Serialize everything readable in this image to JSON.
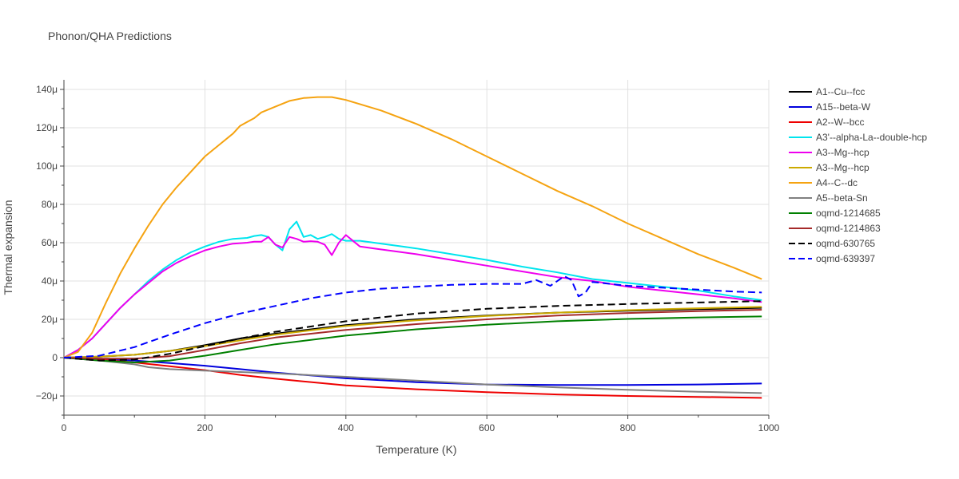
{
  "chart_data": {
    "type": "line",
    "title": "Phonon/QHA Predictions",
    "xlabel": "Temperature (K)",
    "ylabel": "Thermal expansion",
    "xlim": [
      0,
      1000
    ],
    "ylim": [
      -30,
      145
    ],
    "x_ticks": [
      0,
      200,
      400,
      600,
      800,
      1000
    ],
    "x_tick_labels": [
      "0",
      "200",
      "400",
      "600",
      "800",
      "1000"
    ],
    "y_ticks": [
      -20,
      0,
      20,
      40,
      60,
      80,
      100,
      120,
      140
    ],
    "y_tick_labels": [
      "−20μ",
      "0",
      "20μ",
      "40μ",
      "60μ",
      "80μ",
      "100μ",
      "120μ",
      "140μ"
    ],
    "y_unit": "μ",
    "grid": true,
    "legend_position": "right",
    "series": [
      {
        "name": "A1--Cu--fcc",
        "color": "#000000",
        "dash": "solid",
        "x": [
          0,
          50,
          100,
          150,
          200,
          250,
          300,
          400,
          500,
          600,
          700,
          800,
          900,
          990
        ],
        "y": [
          0,
          0.5,
          1.5,
          3.5,
          6.5,
          10,
          12.5,
          17,
          20,
          22,
          23.5,
          24.5,
          25.3,
          26
        ]
      },
      {
        "name": "A15--beta-W",
        "color": "#0000dd",
        "dash": "solid",
        "x": [
          0,
          50,
          100,
          150,
          200,
          250,
          300,
          400,
          500,
          600,
          700,
          800,
          900,
          990
        ],
        "y": [
          0,
          -0.5,
          -1.5,
          -2.8,
          -4.2,
          -6,
          -7.8,
          -10.8,
          -12.8,
          -14,
          -14.3,
          -14.3,
          -14,
          -13.5
        ]
      },
      {
        "name": "A2--W--bcc",
        "color": "#ee0000",
        "dash": "solid",
        "x": [
          0,
          50,
          100,
          150,
          200,
          250,
          300,
          400,
          500,
          600,
          700,
          800,
          900,
          990
        ],
        "y": [
          0,
          -1,
          -2.5,
          -4.5,
          -6.5,
          -9,
          -11,
          -14.5,
          -16.5,
          -18,
          -19.2,
          -20,
          -20.5,
          -21
        ]
      },
      {
        "name": "A3'--alpha-La--double-hcp",
        "color": "#00e5ee",
        "dash": "solid",
        "x": [
          0,
          20,
          40,
          60,
          80,
          100,
          120,
          140,
          160,
          180,
          200,
          220,
          240,
          260,
          270,
          280,
          290,
          300,
          310,
          320,
          330,
          340,
          350,
          360,
          370,
          380,
          390,
          400,
          420,
          440,
          460,
          480,
          500,
          550,
          600,
          650,
          700,
          750,
          800,
          850,
          900,
          950,
          990
        ],
        "y": [
          0,
          4,
          10,
          18,
          26,
          33,
          40,
          46,
          51,
          55,
          58,
          60.5,
          62,
          62.5,
          63.5,
          64,
          63,
          59,
          56,
          67,
          71,
          63,
          64,
          62,
          63,
          64.5,
          62,
          61,
          61,
          60,
          59,
          58,
          57,
          54,
          51,
          47.5,
          44.5,
          41,
          39,
          37,
          35,
          32,
          30
        ]
      },
      {
        "name": "A3--Mg--hcp",
        "color": "#ee00ee",
        "dash": "solid",
        "x": [
          0,
          20,
          40,
          60,
          80,
          100,
          120,
          140,
          160,
          180,
          200,
          220,
          240,
          260,
          270,
          280,
          290,
          300,
          310,
          320,
          330,
          340,
          350,
          360,
          370,
          380,
          390,
          400,
          420,
          440,
          460,
          480,
          500,
          550,
          600,
          650,
          700,
          750,
          800,
          850,
          900,
          950,
          990
        ],
        "y": [
          0,
          4,
          10,
          18,
          26,
          33,
          39,
          45,
          49.5,
          53,
          56,
          58,
          59.5,
          60,
          60.5,
          60.5,
          63,
          59,
          57.5,
          63,
          62,
          60.5,
          60.8,
          60.5,
          59,
          53.5,
          60,
          64,
          58,
          57,
          56,
          55,
          54,
          51,
          48,
          45,
          42,
          40,
          37,
          35,
          33,
          31,
          29
        ]
      },
      {
        "name": "A3--Mg--hcp",
        "color": "#ccaa00",
        "dash": "solid",
        "x": [
          0,
          50,
          100,
          150,
          200,
          250,
          300,
          400,
          500,
          600,
          700,
          800,
          900,
          990
        ],
        "y": [
          0,
          0.5,
          1.5,
          3.5,
          6,
          9,
          12,
          16.5,
          19.5,
          21.8,
          23.5,
          24.8,
          25.8,
          26.5
        ]
      },
      {
        "name": "A4--C--dc",
        "color": "#f5a311",
        "dash": "solid",
        "x": [
          0,
          20,
          40,
          60,
          80,
          100,
          120,
          140,
          160,
          180,
          200,
          220,
          240,
          250,
          260,
          270,
          280,
          300,
          320,
          340,
          360,
          380,
          400,
          450,
          500,
          550,
          600,
          650,
          700,
          750,
          800,
          850,
          900,
          950,
          990
        ],
        "y": [
          0,
          3,
          13,
          29,
          44,
          57,
          69,
          80,
          89,
          97,
          105,
          111,
          117,
          121,
          123,
          125,
          128,
          131,
          134,
          135.5,
          136,
          136,
          134.5,
          129,
          122,
          114,
          105,
          96,
          87,
          79,
          70,
          62,
          54,
          47,
          41
        ]
      },
      {
        "name": "A5--beta-Sn",
        "color": "#808080",
        "dash": "solid",
        "x": [
          0,
          50,
          100,
          120,
          150,
          200,
          250,
          300,
          400,
          500,
          600,
          700,
          800,
          900,
          990
        ],
        "y": [
          0,
          -1.5,
          -3.5,
          -5,
          -6,
          -6.8,
          -7.5,
          -8.2,
          -10,
          -12,
          -14,
          -15.5,
          -16.8,
          -17.8,
          -18.5
        ]
      },
      {
        "name": "oqmd-1214685",
        "color": "#008000",
        "dash": "solid",
        "x": [
          0,
          50,
          100,
          150,
          200,
          250,
          300,
          400,
          500,
          600,
          700,
          800,
          900,
          990
        ],
        "y": [
          0,
          -1.5,
          -2.5,
          -1.5,
          1,
          4,
          7,
          11.5,
          14.8,
          17.2,
          19,
          20.2,
          21,
          21.5
        ]
      },
      {
        "name": "oqmd-1214863",
        "color": "#a52a2a",
        "dash": "solid",
        "x": [
          0,
          50,
          100,
          150,
          200,
          250,
          300,
          400,
          500,
          600,
          700,
          800,
          900,
          990
        ],
        "y": [
          0,
          -0.5,
          -0.5,
          0.8,
          4,
          7.5,
          10.5,
          14.5,
          17.5,
          20,
          22,
          23.3,
          24.3,
          25
        ]
      },
      {
        "name": "oqmd-630765",
        "color": "#000000",
        "dash": "dash",
        "x": [
          0,
          50,
          100,
          150,
          200,
          250,
          300,
          400,
          500,
          600,
          700,
          800,
          900,
          990
        ],
        "y": [
          0,
          -1.5,
          -1,
          2,
          6,
          10,
          13.5,
          19,
          23,
          25.5,
          27,
          28,
          28.8,
          29.5
        ]
      },
      {
        "name": "oqmd-639397",
        "color": "#0000ff",
        "dash": "dash",
        "x": [
          0,
          50,
          100,
          150,
          200,
          250,
          300,
          350,
          400,
          450,
          500,
          550,
          600,
          650,
          670,
          690,
          710,
          720,
          730,
          740,
          750,
          800,
          850,
          900,
          950,
          990
        ],
        "y": [
          0,
          1,
          5.5,
          12,
          18,
          23,
          27,
          31,
          34,
          36,
          37,
          38,
          38.5,
          38.5,
          40.5,
          37.5,
          42.5,
          40.5,
          32,
          34,
          39.5,
          37.5,
          36.5,
          35.5,
          34.5,
          34
        ]
      }
    ]
  }
}
